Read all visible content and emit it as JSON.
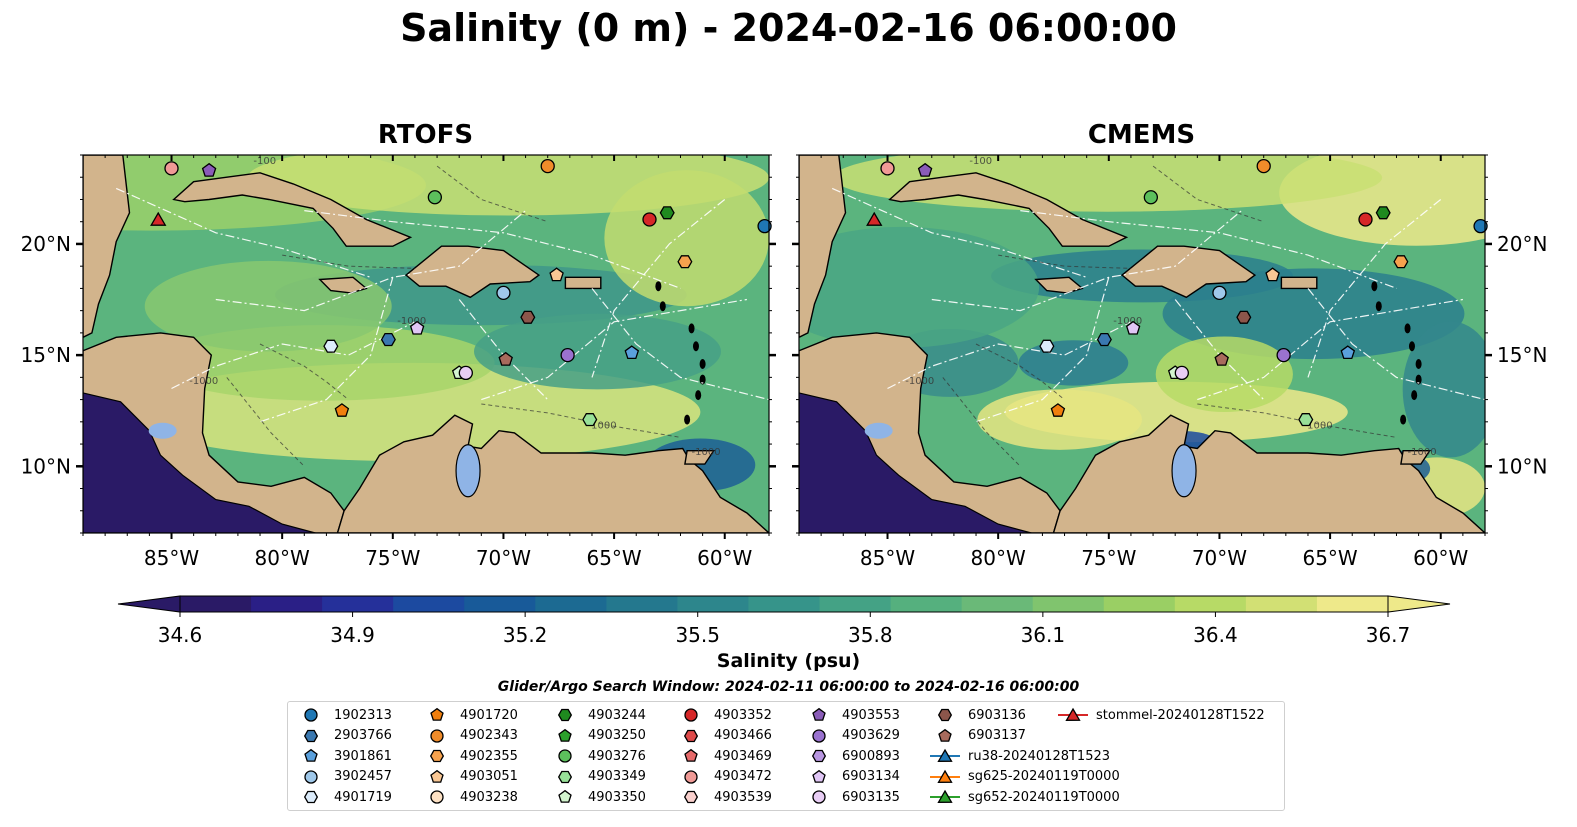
{
  "title": "Salinity (0 m) - 2024-02-16 06:00:00",
  "panels": [
    {
      "title": "RTOFS",
      "variant": "rtofs"
    },
    {
      "title": "CMEMS",
      "variant": "cmems"
    }
  ],
  "map": {
    "lon_range": [
      -89,
      -58
    ],
    "lat_range": [
      7,
      24
    ],
    "lon_ticks": [
      {
        "value": -85,
        "label": "85°W"
      },
      {
        "value": -80,
        "label": "80°W"
      },
      {
        "value": -75,
        "label": "75°W"
      },
      {
        "value": -70,
        "label": "70°W"
      },
      {
        "value": -65,
        "label": "65°W"
      },
      {
        "value": -60,
        "label": "60°W"
      }
    ],
    "lat_ticks": [
      {
        "value": 10,
        "label": "10°N"
      },
      {
        "value": 15,
        "label": "15°N"
      },
      {
        "value": 20,
        "label": "20°N"
      }
    ],
    "contour_labels": [
      "-100",
      "-1000",
      "-1000",
      "-1000",
      "-1000"
    ],
    "colors": {
      "land": "#d2b48c",
      "coast": "#000000",
      "lake": "#8fb4e6",
      "tracks": "#ffffff"
    }
  },
  "colorbar": {
    "label": "Salinity (psu)",
    "min": 34.6,
    "max": 36.7,
    "extend": "both",
    "ticks": [
      "34.6",
      "34.9",
      "35.2",
      "35.5",
      "35.8",
      "36.1",
      "36.4",
      "36.7"
    ],
    "colors": [
      "#2a1a66",
      "#2a1f86",
      "#25309a",
      "#1c4aa0",
      "#185a99",
      "#1c6a92",
      "#24788e",
      "#2d868c",
      "#36948a",
      "#44a285",
      "#55b07e",
      "#6ab978",
      "#80c46e",
      "#9acf64",
      "#b7da66",
      "#d2e074",
      "#eee98a"
    ]
  },
  "search_window": "Glider/Argo Search Window: 2024-02-11 06:00:00 to 2024-02-16 06:00:00",
  "legend": [
    {
      "label": "1902313",
      "marker": "circle",
      "color": "#1f77b4"
    },
    {
      "label": "2903766",
      "marker": "hexagon",
      "color": "#3a78b0"
    },
    {
      "label": "3901861",
      "marker": "pentagon",
      "color": "#5aa0dc"
    },
    {
      "label": "3902457",
      "marker": "circle",
      "color": "#9fc8ea"
    },
    {
      "label": "4901719",
      "marker": "hexagon",
      "color": "#dcecfb"
    },
    {
      "label": "4901720",
      "marker": "pentagon",
      "color": "#f07f0e"
    },
    {
      "label": "4902343",
      "marker": "circle",
      "color": "#f08c2a"
    },
    {
      "label": "4902355",
      "marker": "hexagon",
      "color": "#f6a24e"
    },
    {
      "label": "4903051",
      "marker": "pentagon",
      "color": "#f9c794"
    },
    {
      "label": "4903238",
      "marker": "circle",
      "color": "#fde1c4"
    },
    {
      "label": "4903244",
      "marker": "hexagon",
      "color": "#1f8a1f"
    },
    {
      "label": "4903250",
      "marker": "pentagon",
      "color": "#2ca02c"
    },
    {
      "label": "4903276",
      "marker": "circle",
      "color": "#5cc05c"
    },
    {
      "label": "4903349",
      "marker": "hexagon",
      "color": "#98e098"
    },
    {
      "label": "4903350",
      "marker": "pentagon",
      "color": "#d4f5cf"
    },
    {
      "label": "4903352",
      "marker": "circle",
      "color": "#d62728"
    },
    {
      "label": "4903466",
      "marker": "hexagon",
      "color": "#de4a4a"
    },
    {
      "label": "4903469",
      "marker": "pentagon",
      "color": "#e66a6a"
    },
    {
      "label": "4903472",
      "marker": "circle",
      "color": "#f09a96"
    },
    {
      "label": "4903539",
      "marker": "hexagon",
      "color": "#f9d0cd"
    },
    {
      "label": "4903553",
      "marker": "pentagon",
      "color": "#8a5cb8"
    },
    {
      "label": "4903629",
      "marker": "circle",
      "color": "#9a72cf"
    },
    {
      "label": "6900893",
      "marker": "hexagon",
      "color": "#b896e0"
    },
    {
      "label": "6903134",
      "marker": "pentagon",
      "color": "#e0c6f5"
    },
    {
      "label": "6903135",
      "marker": "circle",
      "color": "#e8cdf4"
    },
    {
      "label": "6903136",
      "marker": "hexagon",
      "color": "#8c564b"
    },
    {
      "label": "6903137",
      "marker": "pentagon",
      "color": "#a86a5c"
    },
    {
      "label": "ru38-20240128T1523",
      "marker": "triangle",
      "color": "#1f77b4"
    },
    {
      "label": "sg625-20240119T0000",
      "marker": "triangle",
      "color": "#ff7f0e"
    },
    {
      "label": "sg652-20240119T0000",
      "marker": "triangle",
      "color": "#2ca02c"
    },
    {
      "label": "stommel-20240128T1522",
      "marker": "triangle",
      "color": "#d62728"
    }
  ],
  "observations": [
    {
      "id": "4903472",
      "lon": -85.0,
      "lat": 23.4,
      "marker": "circle",
      "color": "#f09a96"
    },
    {
      "id": "4903553",
      "lon": -83.3,
      "lat": 23.3,
      "marker": "pentagon",
      "color": "#8a5cb8"
    },
    {
      "id": "4902343",
      "lon": -68.0,
      "lat": 23.5,
      "marker": "circle",
      "color": "#f08c2a"
    },
    {
      "id": "4903276",
      "lon": -73.1,
      "lat": 22.1,
      "marker": "circle",
      "color": "#5cc05c"
    },
    {
      "id": "4903352",
      "lon": -63.4,
      "lat": 21.1,
      "marker": "circle",
      "color": "#d62728"
    },
    {
      "id": "4903244",
      "lon": -62.6,
      "lat": 21.4,
      "marker": "hexagon",
      "color": "#1f8a1f"
    },
    {
      "id": "1902313",
      "lon": -58.2,
      "lat": 20.8,
      "marker": "circle",
      "color": "#1f77b4"
    },
    {
      "id": "4902355",
      "lon": -61.8,
      "lat": 19.2,
      "marker": "hexagon",
      "color": "#f6a24e"
    },
    {
      "id": "4903051",
      "lon": -67.6,
      "lat": 18.6,
      "marker": "pentagon",
      "color": "#f9c794"
    },
    {
      "id": "3902457",
      "lon": -70.0,
      "lat": 17.8,
      "marker": "circle",
      "color": "#9fc8ea"
    },
    {
      "id": "6903136",
      "lon": -68.9,
      "lat": 16.7,
      "marker": "hexagon",
      "color": "#8c564b"
    },
    {
      "id": "6903134",
      "lon": -73.9,
      "lat": 16.2,
      "marker": "pentagon",
      "color": "#e0c6f5"
    },
    {
      "id": "2903766",
      "lon": -75.2,
      "lat": 15.7,
      "marker": "hexagon",
      "color": "#3a78b0"
    },
    {
      "id": "4901719",
      "lon": -77.8,
      "lat": 15.4,
      "marker": "hexagon",
      "color": "#dcecfb"
    },
    {
      "id": "3901861",
      "lon": -64.2,
      "lat": 15.1,
      "marker": "pentagon",
      "color": "#5aa0dc"
    },
    {
      "id": "4903629",
      "lon": -67.1,
      "lat": 15.0,
      "marker": "circle",
      "color": "#9a72cf"
    },
    {
      "id": "6903137",
      "lon": -69.9,
      "lat": 14.8,
      "marker": "pentagon",
      "color": "#a86a5c"
    },
    {
      "id": "4903350",
      "lon": -72.0,
      "lat": 14.2,
      "marker": "pentagon",
      "color": "#d4f5cf"
    },
    {
      "id": "6903135",
      "lon": -71.7,
      "lat": 14.2,
      "marker": "circle",
      "color": "#e8cdf4"
    },
    {
      "id": "4901720",
      "lon": -77.3,
      "lat": 12.5,
      "marker": "pentagon",
      "color": "#f07f0e"
    },
    {
      "id": "4903349",
      "lon": -66.1,
      "lat": 12.1,
      "marker": "hexagon",
      "color": "#98e098"
    },
    {
      "id": "stommel-20240128T1522",
      "lon": -85.6,
      "lat": 21.1,
      "marker": "triangle",
      "color": "#d62728"
    }
  ]
}
